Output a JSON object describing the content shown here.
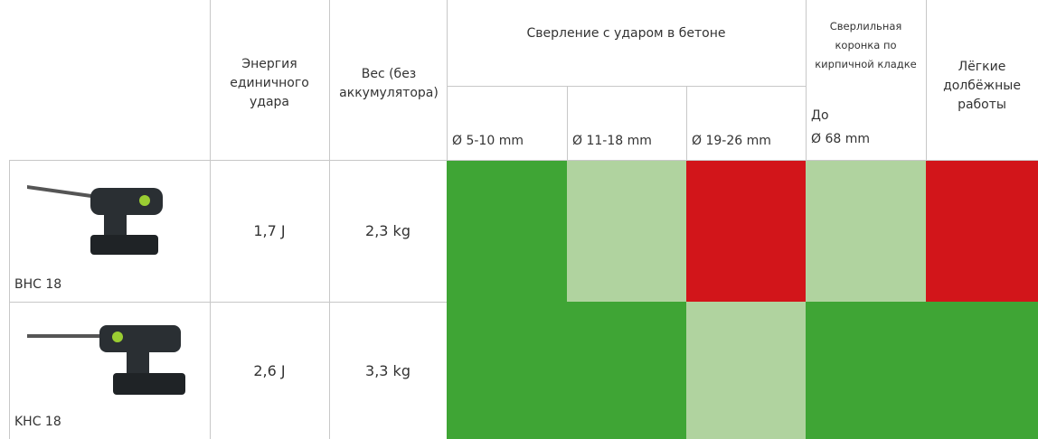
{
  "table": {
    "headers": {
      "energy": "Энергия единичного удара",
      "weight": "Вес (без аккумулятора)",
      "drilling": "Сверление с ударом в бетоне",
      "drilling_sizes": [
        "Ø 5-10 mm",
        "Ø 11-18 mm",
        "Ø 19-26 mm"
      ],
      "core_bit": "Сверлильная коронка по кирпичной кладке",
      "core_bit_size": [
        "До",
        "Ø 68 mm"
      ],
      "chiselling": "Лёгкие долбёжные работы"
    },
    "rows": [
      {
        "name": "BHC 18",
        "energy": "1,7 J",
        "weight": "2,3 kg",
        "ratings": [
          "#3fa535",
          "#b0d39f",
          "#d2151a",
          "#b0d39f",
          "#d2151a"
        ]
      },
      {
        "name": "KHC 18",
        "energy": "2,6 J",
        "weight": "3,3 kg",
        "ratings": [
          "#3fa535",
          "#3fa535",
          "#b0d39f",
          "#3fa535",
          "#3fa535"
        ]
      }
    ]
  }
}
